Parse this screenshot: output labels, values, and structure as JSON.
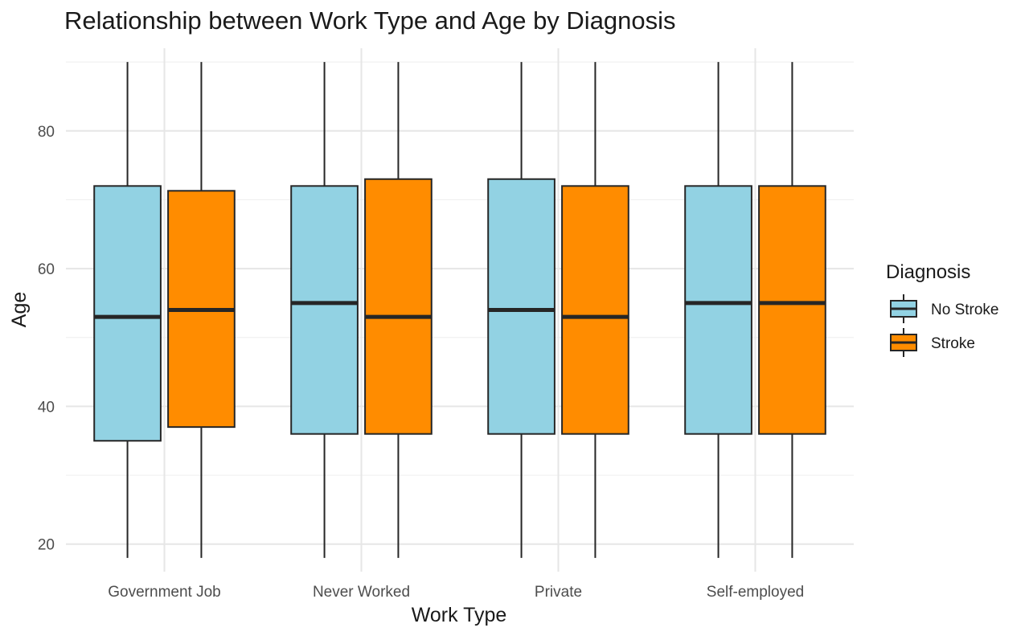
{
  "chart_data": {
    "type": "box",
    "title": "Relationship between Work Type and Age by Diagnosis",
    "xlabel": "Work Type",
    "ylabel": "Age",
    "categories": [
      "Government Job",
      "Never Worked",
      "Private",
      "Self-employed"
    ],
    "ylim": [
      16,
      92
    ],
    "yticks": [
      20,
      40,
      60,
      80
    ],
    "grid": true,
    "legend": {
      "title": "Diagnosis",
      "position": "right",
      "entries": [
        "No Stroke",
        "Stroke"
      ]
    },
    "series": [
      {
        "name": "No Stroke",
        "color": "#92D2E3",
        "boxes": [
          {
            "min": 18,
            "q1": 35,
            "median": 53,
            "q3": 72,
            "max": 90
          },
          {
            "min": 18,
            "q1": 36,
            "median": 55,
            "q3": 72,
            "max": 90
          },
          {
            "min": 18,
            "q1": 36,
            "median": 54,
            "q3": 73,
            "max": 90
          },
          {
            "min": 18,
            "q1": 36,
            "median": 55,
            "q3": 72,
            "max": 90
          }
        ]
      },
      {
        "name": "Stroke",
        "color": "#FF8C00",
        "boxes": [
          {
            "min": 18,
            "q1": 37,
            "median": 54,
            "q3": 71.3,
            "max": 90
          },
          {
            "min": 18,
            "q1": 36,
            "median": 53,
            "q3": 73,
            "max": 90
          },
          {
            "min": 18,
            "q1": 36,
            "median": 53,
            "q3": 72,
            "max": 90
          },
          {
            "min": 18,
            "q1": 36,
            "median": 55,
            "q3": 72,
            "max": 90
          }
        ]
      }
    ]
  }
}
